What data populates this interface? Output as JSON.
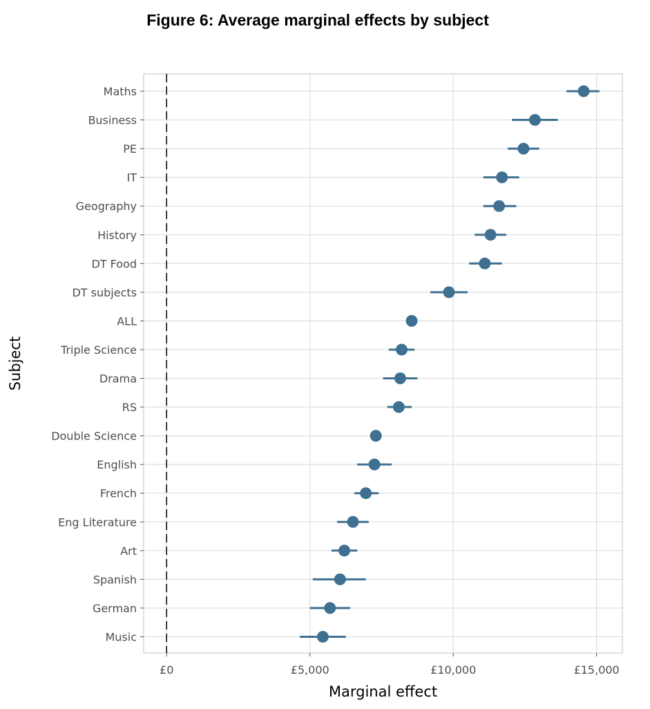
{
  "chart_data": {
    "type": "scatter",
    "subtype": "dot-with-error-bars",
    "title": "Figure 6: Average marginal effects by subject",
    "xlabel": "Marginal effect",
    "ylabel": "Subject",
    "xlim": [
      -800,
      15900
    ],
    "x_ticks": [
      0,
      5000,
      10000,
      15000
    ],
    "x_tick_labels": [
      "£0",
      "£5,000",
      "£10,000",
      "£15,000"
    ],
    "reference_line": 0,
    "grid": true,
    "colors": {
      "point": "#3f7091",
      "grid": "#dedede",
      "frame": "#cccccc",
      "reference": "#000000"
    },
    "series": [
      {
        "name": "Average marginal effect",
        "points": [
          {
            "label": "Maths",
            "value": 14550,
            "low": 13950,
            "high": 15100
          },
          {
            "label": "Business",
            "value": 12850,
            "low": 12050,
            "high": 13650
          },
          {
            "label": "PE",
            "value": 12450,
            "low": 11900,
            "high": 13000
          },
          {
            "label": "IT",
            "value": 11700,
            "low": 11050,
            "high": 12300
          },
          {
            "label": "Geography",
            "value": 11600,
            "low": 11050,
            "high": 12200
          },
          {
            "label": "History",
            "value": 11300,
            "low": 10750,
            "high": 11850
          },
          {
            "label": "DT Food",
            "value": 11100,
            "low": 10550,
            "high": 11700
          },
          {
            "label": "DT subjects",
            "value": 9850,
            "low": 9200,
            "high": 10500
          },
          {
            "label": "ALL",
            "value": 8550,
            "low": 8550,
            "high": 8550
          },
          {
            "label": "Triple Science",
            "value": 8200,
            "low": 7750,
            "high": 8650
          },
          {
            "label": "Drama",
            "value": 8150,
            "low": 7550,
            "high": 8750
          },
          {
            "label": "RS",
            "value": 8100,
            "low": 7700,
            "high": 8550
          },
          {
            "label": "Double Science",
            "value": 7300,
            "low": 7150,
            "high": 7450
          },
          {
            "label": "English",
            "value": 7250,
            "low": 6650,
            "high": 7850
          },
          {
            "label": "French",
            "value": 6950,
            "low": 6550,
            "high": 7400
          },
          {
            "label": "Eng Literature",
            "value": 6500,
            "low": 5950,
            "high": 7050
          },
          {
            "label": "Art",
            "value": 6200,
            "low": 5750,
            "high": 6650
          },
          {
            "label": "Spanish",
            "value": 6050,
            "low": 5100,
            "high": 6950
          },
          {
            "label": "German",
            "value": 5700,
            "low": 5000,
            "high": 6400
          },
          {
            "label": "Music",
            "value": 5450,
            "low": 4650,
            "high": 6250
          }
        ]
      }
    ]
  }
}
